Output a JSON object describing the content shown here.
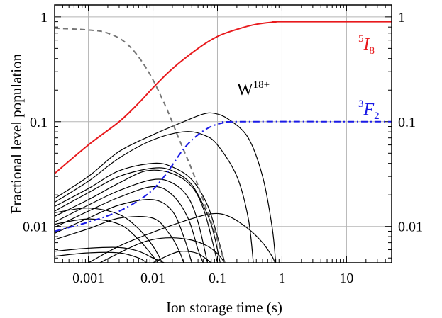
{
  "chart_data": {
    "type": "line",
    "xlabel": "Ion storage time (s)",
    "ylabel": "Fractional level population",
    "xscale": "log",
    "yscale": "log",
    "xlim": [
      0.0003,
      50
    ],
    "ylim": [
      0.0045,
      1.3
    ],
    "grid": true,
    "x_ticks": [
      {
        "value": 0.001,
        "label": "0.001"
      },
      {
        "value": 0.01,
        "label": "0.01"
      },
      {
        "value": 0.1,
        "label": "0.1"
      },
      {
        "value": 1,
        "label": "1"
      },
      {
        "value": 10,
        "label": "10"
      }
    ],
    "y_ticks": [
      {
        "value": 0.01,
        "label": "0.01"
      },
      {
        "value": 0.1,
        "label": "0.1"
      },
      {
        "value": 1,
        "label": "1"
      }
    ],
    "annotations": {
      "ion": {
        "base": "W",
        "sup": "18+"
      },
      "level_red": {
        "sup": "5",
        "base": "I",
        "sub": "8"
      },
      "level_blue": {
        "sup": "3",
        "base": "F",
        "sub": "2"
      }
    },
    "colors": {
      "red": "#e8191c",
      "blue": "#1a1ae6",
      "gray": "#777777",
      "black": "#000000"
    },
    "series": [
      {
        "style": "red-solid",
        "points": [
          [
            0.0003,
            0.032
          ],
          [
            0.001,
            0.06
          ],
          [
            0.003,
            0.1
          ],
          [
            0.006,
            0.15
          ],
          [
            0.01,
            0.21
          ],
          [
            0.02,
            0.32
          ],
          [
            0.05,
            0.5
          ],
          [
            0.1,
            0.65
          ],
          [
            0.2,
            0.76
          ],
          [
            0.4,
            0.85
          ],
          [
            0.8,
            0.895
          ],
          [
            1,
            0.9
          ],
          [
            50,
            0.9
          ]
        ]
      },
      {
        "style": "blue-dashdot",
        "points": [
          [
            0.0003,
            0.009
          ],
          [
            0.001,
            0.011
          ],
          [
            0.003,
            0.014
          ],
          [
            0.008,
            0.02
          ],
          [
            0.015,
            0.03
          ],
          [
            0.03,
            0.055
          ],
          [
            0.05,
            0.075
          ],
          [
            0.08,
            0.09
          ],
          [
            0.12,
            0.097
          ],
          [
            0.2,
            0.1
          ],
          [
            50,
            0.1
          ]
        ]
      },
      {
        "style": "gray-dashed",
        "points": [
          [
            0.0003,
            0.78
          ],
          [
            0.001,
            0.75
          ],
          [
            0.002,
            0.7
          ],
          [
            0.004,
            0.55
          ],
          [
            0.008,
            0.32
          ],
          [
            0.015,
            0.15
          ],
          [
            0.025,
            0.07
          ],
          [
            0.04,
            0.035
          ],
          [
            0.06,
            0.018
          ],
          [
            0.09,
            0.009
          ],
          [
            0.13,
            0.0045
          ]
        ]
      },
      {
        "style": "black",
        "points": [
          [
            0.0003,
            0.0185
          ],
          [
            0.001,
            0.03
          ],
          [
            0.003,
            0.052
          ],
          [
            0.01,
            0.075
          ],
          [
            0.03,
            0.1
          ],
          [
            0.06,
            0.118
          ],
          [
            0.09,
            0.12
          ],
          [
            0.15,
            0.105
          ],
          [
            0.3,
            0.07
          ],
          [
            0.5,
            0.03
          ],
          [
            0.7,
            0.01
          ],
          [
            0.8,
            0.0045
          ]
        ]
      },
      {
        "style": "black",
        "points": [
          [
            0.0003,
            0.017
          ],
          [
            0.001,
            0.027
          ],
          [
            0.003,
            0.045
          ],
          [
            0.01,
            0.067
          ],
          [
            0.03,
            0.08
          ],
          [
            0.06,
            0.075
          ],
          [
            0.1,
            0.06
          ],
          [
            0.2,
            0.03
          ],
          [
            0.3,
            0.012
          ],
          [
            0.36,
            0.0045
          ]
        ]
      },
      {
        "style": "black",
        "points": [
          [
            0.0003,
            0.0155
          ],
          [
            0.001,
            0.023
          ],
          [
            0.003,
            0.034
          ],
          [
            0.01,
            0.04
          ],
          [
            0.02,
            0.037
          ],
          [
            0.04,
            0.028
          ],
          [
            0.07,
            0.016
          ],
          [
            0.1,
            0.008
          ],
          [
            0.13,
            0.0045
          ]
        ]
      },
      {
        "style": "black",
        "points": [
          [
            0.0003,
            0.014
          ],
          [
            0.001,
            0.021
          ],
          [
            0.003,
            0.03
          ],
          [
            0.01,
            0.036
          ],
          [
            0.02,
            0.034
          ],
          [
            0.04,
            0.025
          ],
          [
            0.07,
            0.013
          ],
          [
            0.09,
            0.008
          ],
          [
            0.11,
            0.0045
          ]
        ]
      },
      {
        "style": "black",
        "points": [
          [
            0.0003,
            0.0125
          ],
          [
            0.001,
            0.018
          ],
          [
            0.003,
            0.026
          ],
          [
            0.008,
            0.034
          ],
          [
            0.02,
            0.032
          ],
          [
            0.04,
            0.024
          ],
          [
            0.06,
            0.015
          ],
          [
            0.08,
            0.008
          ],
          [
            0.1,
            0.0045
          ]
        ]
      },
      {
        "style": "black",
        "points": [
          [
            0.0003,
            0.011
          ],
          [
            0.001,
            0.016
          ],
          [
            0.003,
            0.022
          ],
          [
            0.01,
            0.028
          ],
          [
            0.02,
            0.026
          ],
          [
            0.035,
            0.019
          ],
          [
            0.05,
            0.011
          ],
          [
            0.07,
            0.0045
          ]
        ]
      },
      {
        "style": "black",
        "points": [
          [
            0.0003,
            0.0098
          ],
          [
            0.001,
            0.014
          ],
          [
            0.003,
            0.019
          ],
          [
            0.01,
            0.024
          ],
          [
            0.02,
            0.02
          ],
          [
            0.035,
            0.012
          ],
          [
            0.05,
            0.006
          ],
          [
            0.06,
            0.0045
          ]
        ]
      },
      {
        "style": "black",
        "points": [
          [
            0.0003,
            0.0086
          ],
          [
            0.001,
            0.012
          ],
          [
            0.003,
            0.016
          ],
          [
            0.01,
            0.018
          ],
          [
            0.02,
            0.014
          ],
          [
            0.03,
            0.008
          ],
          [
            0.04,
            0.0045
          ]
        ]
      },
      {
        "style": "black",
        "points": [
          [
            0.0003,
            0.0075
          ],
          [
            0.001,
            0.0095
          ],
          [
            0.003,
            0.012
          ],
          [
            0.01,
            0.012
          ],
          [
            0.018,
            0.0085
          ],
          [
            0.025,
            0.006
          ],
          [
            0.03,
            0.0045
          ]
        ]
      },
      {
        "style": "black",
        "points": [
          [
            0.0003,
            0.0058
          ],
          [
            0.001,
            0.0062
          ],
          [
            0.003,
            0.0063
          ],
          [
            0.006,
            0.0058
          ],
          [
            0.01,
            0.005
          ],
          [
            0.015,
            0.0045
          ]
        ]
      },
      {
        "style": "black",
        "points": [
          [
            0.0003,
            0.0052
          ],
          [
            0.001,
            0.0056
          ],
          [
            0.003,
            0.0056
          ],
          [
            0.006,
            0.005
          ],
          [
            0.008,
            0.0045
          ]
        ]
      },
      {
        "style": "black",
        "points": [
          [
            0.001,
            0.0045
          ],
          [
            0.003,
            0.0065
          ],
          [
            0.01,
            0.0088
          ],
          [
            0.03,
            0.0112
          ],
          [
            0.08,
            0.0132
          ],
          [
            0.15,
            0.0125
          ],
          [
            0.3,
            0.0095
          ],
          [
            0.5,
            0.007
          ],
          [
            0.7,
            0.0052
          ],
          [
            0.78,
            0.0045
          ]
        ]
      },
      {
        "style": "black",
        "points": [
          [
            0.0015,
            0.0045
          ],
          [
            0.005,
            0.0065
          ],
          [
            0.01,
            0.0075
          ],
          [
            0.02,
            0.0078
          ],
          [
            0.04,
            0.0074
          ],
          [
            0.07,
            0.0065
          ],
          [
            0.1,
            0.0055
          ],
          [
            0.13,
            0.0045
          ]
        ]
      },
      {
        "style": "black",
        "points": [
          [
            0.01,
            0.0045
          ],
          [
            0.02,
            0.0055
          ],
          [
            0.03,
            0.0058
          ],
          [
            0.05,
            0.0055
          ],
          [
            0.08,
            0.0045
          ]
        ]
      },
      {
        "style": "black",
        "points": [
          [
            0.0003,
            0.0135
          ],
          [
            0.001,
            0.015
          ],
          [
            0.003,
            0.013
          ],
          [
            0.006,
            0.0095
          ],
          [
            0.01,
            0.0065
          ],
          [
            0.014,
            0.0045
          ]
        ]
      },
      {
        "style": "black",
        "points": [
          [
            0.0003,
            0.0105
          ],
          [
            0.001,
            0.0118
          ],
          [
            0.003,
            0.0105
          ],
          [
            0.006,
            0.0075
          ],
          [
            0.01,
            0.0052
          ],
          [
            0.012,
            0.0045
          ]
        ]
      }
    ]
  }
}
